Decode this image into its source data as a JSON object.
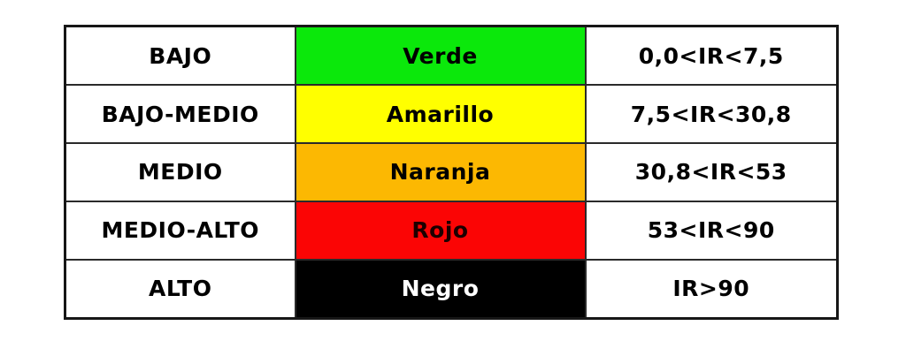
{
  "table": {
    "description": "Risk index (IR) legend table",
    "rows": [
      {
        "level": "BAJO",
        "color_label": "Verde",
        "color_hex": "#0be80b",
        "text_color": "#000000",
        "range": "0,0<IR<7,5"
      },
      {
        "level": "BAJO-MEDIO",
        "color_label": "Amarillo",
        "color_hex": "#ffff00",
        "text_color": "#000000",
        "range": "7,5<IR<30,8"
      },
      {
        "level": "MEDIO",
        "color_label": "Naranja",
        "color_hex": "#fcb802",
        "text_color": "#000000",
        "range": "30,8<IR<53"
      },
      {
        "level": "MEDIO-ALTO",
        "color_label": "Rojo",
        "color_hex": "#fb0505",
        "text_color": "#1c0000",
        "range": "53<IR<90"
      },
      {
        "level": "ALTO",
        "color_label": "Negro",
        "color_hex": "#000000",
        "text_color": "#ffffff",
        "range": "IR>90"
      }
    ]
  }
}
